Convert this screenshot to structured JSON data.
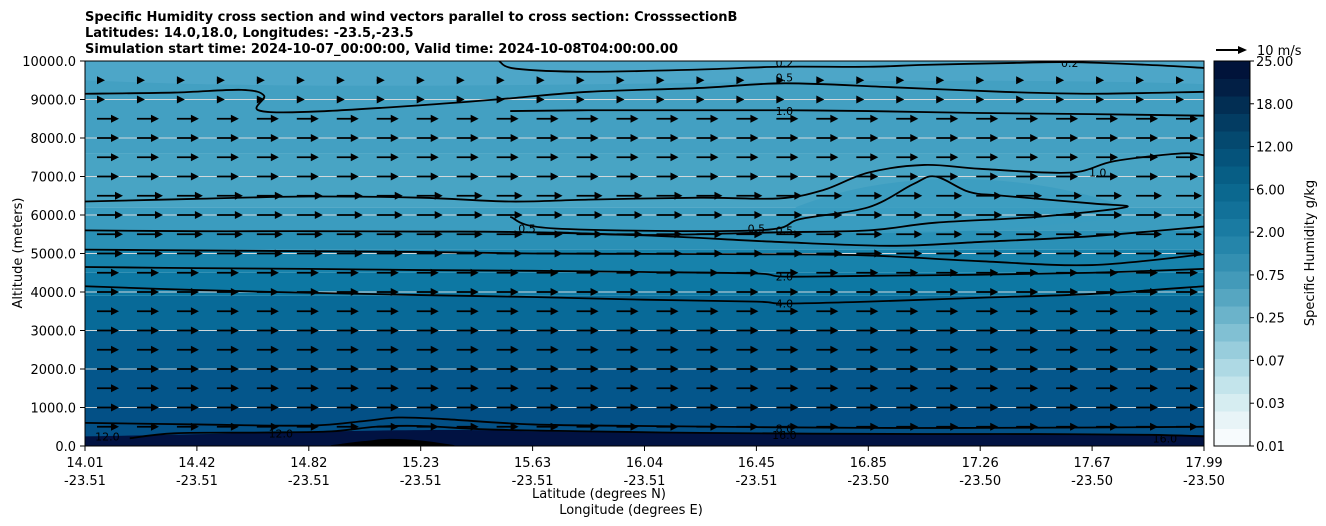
{
  "chart_data": {
    "type": "contour",
    "title": [
      "Specific Humidity cross section and wind vectors parallel to cross section: CrosssectionB",
      "Latitudes: 14.0,18.0, Longitudes: -23.5,-23.5",
      "Simulation start time: 2024-10-07_00:00:00, Valid time: 2024-10-08T04:00:00.00"
    ],
    "xlabel_lat": "Latitude (degrees N)",
    "xlabel_lon": "Longitude (degrees E)",
    "ylabel": "Altitude (meters)",
    "colorbar_label": "Specific Humidity g/kg",
    "ylim": [
      0,
      10000
    ],
    "y_ticks": [
      "0.0",
      "1000.0",
      "2000.0",
      "3000.0",
      "4000.0",
      "5000.0",
      "6000.0",
      "7000.0",
      "8000.0",
      "9000.0",
      "10000.0"
    ],
    "x_ticks": [
      {
        "lat": "14.01",
        "lon": "-23.51"
      },
      {
        "lat": "14.42",
        "lon": "-23.51"
      },
      {
        "lat": "14.82",
        "lon": "-23.51"
      },
      {
        "lat": "15.23",
        "lon": "-23.51"
      },
      {
        "lat": "15.63",
        "lon": "-23.51"
      },
      {
        "lat": "16.04",
        "lon": "-23.51"
      },
      {
        "lat": "16.45",
        "lon": "-23.51"
      },
      {
        "lat": "16.85",
        "lon": "-23.50"
      },
      {
        "lat": "17.26",
        "lon": "-23.50"
      },
      {
        "lat": "17.67",
        "lon": "-23.50"
      },
      {
        "lat": "17.99",
        "lon": "-23.50"
      }
    ],
    "colorbar_ticks": [
      "0.01",
      "0.03",
      "0.07",
      "0.25",
      "0.75",
      "2.00",
      "6.00",
      "12.00",
      "18.00",
      "25.00"
    ],
    "colorbar_levels": 20,
    "colorbar_colors": [
      "#f7fbfd",
      "#e8f4f7",
      "#d6edf1",
      "#c3e4eb",
      "#aed9e4",
      "#98cddc",
      "#81c0d3",
      "#6bb3ca",
      "#56a6c1",
      "#439ab9",
      "#338fb1",
      "#2585aa",
      "#1a7ba2",
      "#127199",
      "#0b688f",
      "#075e85",
      "#05537b",
      "#04496f",
      "#033c62",
      "#022e53",
      "#021f45",
      "#01133a"
    ],
    "wind_key": {
      "label": "10 m/s",
      "speed": 10
    },
    "contours": [
      {
        "level": "0.2",
        "label": "0.2"
      },
      {
        "level": "0.5",
        "label": "0.5"
      },
      {
        "level": "1.0",
        "label": "1.0"
      },
      {
        "level": "2.0",
        "label": "2.0"
      },
      {
        "level": "4.0",
        "label": "4.0"
      },
      {
        "level": "8.0",
        "label": "8.0"
      },
      {
        "level": "12.0",
        "label": "12.0"
      },
      {
        "level": "16.0",
        "label": "16.0"
      }
    ],
    "contour_labels": [
      {
        "text": "0.2",
        "x": 0.88,
        "y": 9950
      },
      {
        "text": "0.2",
        "x": 0.625,
        "y": 9950
      },
      {
        "text": "0.5",
        "x": 0.625,
        "y": 9570
      },
      {
        "text": "1.0",
        "x": 0.625,
        "y": 8700
      },
      {
        "text": "0.5",
        "x": 0.6,
        "y": 5650
      },
      {
        "text": "0.5",
        "x": 0.625,
        "y": 5600
      },
      {
        "text": "0.5",
        "x": 0.395,
        "y": 5650
      },
      {
        "text": "1.0",
        "x": 0.905,
        "y": 7100
      },
      {
        "text": "2.0",
        "x": 0.625,
        "y": 4400
      },
      {
        "text": "4.0",
        "x": 0.625,
        "y": 3700
      },
      {
        "text": "8.0",
        "x": 0.625,
        "y": 450
      },
      {
        "text": "16.0",
        "x": 0.625,
        "y": 280
      },
      {
        "text": "12.0",
        "x": 0.175,
        "y": 330
      },
      {
        "text": "16.0",
        "x": 0.965,
        "y": 200
      },
      {
        "text": "12.0",
        "x": 0.02,
        "y": 250
      }
    ],
    "contour_lines": [
      {
        "level": "0.2",
        "points": [
          [
            0.37,
            10000
          ],
          [
            0.385,
            9800
          ],
          [
            0.45,
            9720
          ],
          [
            0.55,
            9780
          ],
          [
            0.62,
            9850
          ],
          [
            0.7,
            9850
          ],
          [
            0.75,
            9900
          ],
          [
            0.83,
            9950
          ],
          [
            0.88,
            9970
          ],
          [
            0.95,
            9900
          ],
          [
            1.0,
            9820
          ]
        ]
      },
      {
        "level": "0.5",
        "points": [
          [
            0.0,
            9150
          ],
          [
            0.08,
            9180
          ],
          [
            0.14,
            9250
          ],
          [
            0.16,
            9100
          ],
          [
            0.155,
            8720
          ],
          [
            0.2,
            8680
          ],
          [
            0.3,
            8850
          ],
          [
            0.38,
            9030
          ],
          [
            0.45,
            9200
          ],
          [
            0.55,
            9300
          ],
          [
            0.625,
            9420
          ],
          [
            0.72,
            9320
          ],
          [
            0.82,
            9200
          ],
          [
            0.9,
            9150
          ],
          [
            1.0,
            9200
          ]
        ]
      },
      {
        "level": "1.0",
        "points": [
          [
            0.38,
            8700
          ],
          [
            0.45,
            8720
          ],
          [
            0.55,
            8720
          ],
          [
            0.625,
            8720
          ],
          [
            0.7,
            8700
          ],
          [
            0.8,
            8650
          ],
          [
            0.9,
            8620
          ],
          [
            1.0,
            8580
          ]
        ]
      },
      {
        "level": "1.0",
        "points": [
          [
            0.0,
            6350
          ],
          [
            0.1,
            6420
          ],
          [
            0.2,
            6480
          ],
          [
            0.3,
            6450
          ],
          [
            0.38,
            6350
          ],
          [
            0.45,
            6400
          ],
          [
            0.55,
            6450
          ],
          [
            0.62,
            6430
          ],
          [
            0.66,
            6650
          ],
          [
            0.7,
            7100
          ],
          [
            0.75,
            7300
          ],
          [
            0.8,
            7200
          ],
          [
            0.88,
            7100
          ],
          [
            0.92,
            7400
          ],
          [
            0.98,
            7600
          ],
          [
            1.0,
            7550
          ]
        ]
      },
      {
        "level": "0.5",
        "points": [
          [
            0.38,
            5950
          ],
          [
            0.42,
            5650
          ],
          [
            0.6,
            5600
          ],
          [
            0.64,
            5900
          ],
          [
            0.7,
            6200
          ],
          [
            0.74,
            6800
          ],
          [
            0.76,
            7000
          ],
          [
            0.79,
            6600
          ],
          [
            0.82,
            6500
          ],
          [
            0.9,
            6300
          ],
          [
            0.93,
            6200
          ],
          [
            0.85,
            5950
          ],
          [
            0.76,
            5800
          ],
          [
            0.7,
            5600
          ],
          [
            0.62,
            5550
          ],
          [
            0.5,
            5480
          ],
          [
            0.42,
            5550
          ]
        ]
      },
      {
        "level": "0.5",
        "points": [
          [
            0.0,
            5600
          ],
          [
            0.1,
            5580
          ],
          [
            0.2,
            5580
          ],
          [
            0.3,
            5570
          ],
          [
            0.38,
            5560
          ],
          [
            0.5,
            5470
          ],
          [
            0.62,
            5300
          ],
          [
            0.72,
            5200
          ],
          [
            0.8,
            5300
          ],
          [
            0.9,
            5450
          ],
          [
            1.0,
            5700
          ]
        ]
      },
      {
        "level": "2.0",
        "points": [
          [
            0.0,
            5100
          ],
          [
            0.1,
            5080
          ],
          [
            0.2,
            5060
          ],
          [
            0.3,
            5040
          ],
          [
            0.4,
            5000
          ],
          [
            0.5,
            4990
          ],
          [
            0.6,
            4980
          ],
          [
            0.7,
            4950
          ],
          [
            0.8,
            4800
          ],
          [
            0.9,
            4700
          ],
          [
            1.0,
            4980
          ]
        ]
      },
      {
        "level": "2.0",
        "points": [
          [
            0.0,
            4650
          ],
          [
            0.1,
            4620
          ],
          [
            0.2,
            4600
          ],
          [
            0.3,
            4570
          ],
          [
            0.4,
            4550
          ],
          [
            0.5,
            4520
          ],
          [
            0.6,
            4480
          ],
          [
            0.625,
            4400
          ],
          [
            0.7,
            4420
          ],
          [
            0.8,
            4450
          ],
          [
            0.9,
            4500
          ],
          [
            1.0,
            4600
          ]
        ]
      },
      {
        "level": "4.0",
        "points": [
          [
            0.0,
            4150
          ],
          [
            0.1,
            4050
          ],
          [
            0.2,
            3980
          ],
          [
            0.3,
            3920
          ],
          [
            0.4,
            3870
          ],
          [
            0.5,
            3800
          ],
          [
            0.6,
            3750
          ],
          [
            0.625,
            3700
          ],
          [
            0.7,
            3750
          ],
          [
            0.8,
            3850
          ],
          [
            0.9,
            3950
          ],
          [
            1.0,
            4150
          ]
        ]
      },
      {
        "level": "8.0",
        "points": [
          [
            0.0,
            600
          ],
          [
            0.1,
            560
          ],
          [
            0.2,
            530
          ],
          [
            0.25,
            650
          ],
          [
            0.28,
            740
          ],
          [
            0.32,
            700
          ],
          [
            0.4,
            560
          ],
          [
            0.5,
            520
          ],
          [
            0.6,
            490
          ],
          [
            0.7,
            470
          ],
          [
            0.8,
            470
          ],
          [
            0.9,
            480
          ],
          [
            1.0,
            500
          ]
        ]
      },
      {
        "level": "12.0",
        "points": [
          [
            0.04,
            200
          ],
          [
            0.08,
            330
          ],
          [
            0.16,
            350
          ],
          [
            0.22,
            380
          ],
          [
            0.26,
            500
          ],
          [
            0.3,
            520
          ],
          [
            0.36,
            430
          ],
          [
            0.45,
            380
          ],
          [
            0.55,
            340
          ],
          [
            0.65,
            320
          ],
          [
            0.75,
            310
          ],
          [
            0.85,
            310
          ],
          [
            0.95,
            290
          ],
          [
            1.0,
            250
          ]
        ]
      },
      {
        "level": "16.0",
        "points": [
          [
            0.22,
            0
          ],
          [
            0.25,
            100
          ],
          [
            0.27,
            160
          ],
          [
            0.3,
            120
          ],
          [
            0.33,
            0
          ]
        ]
      }
    ]
  }
}
